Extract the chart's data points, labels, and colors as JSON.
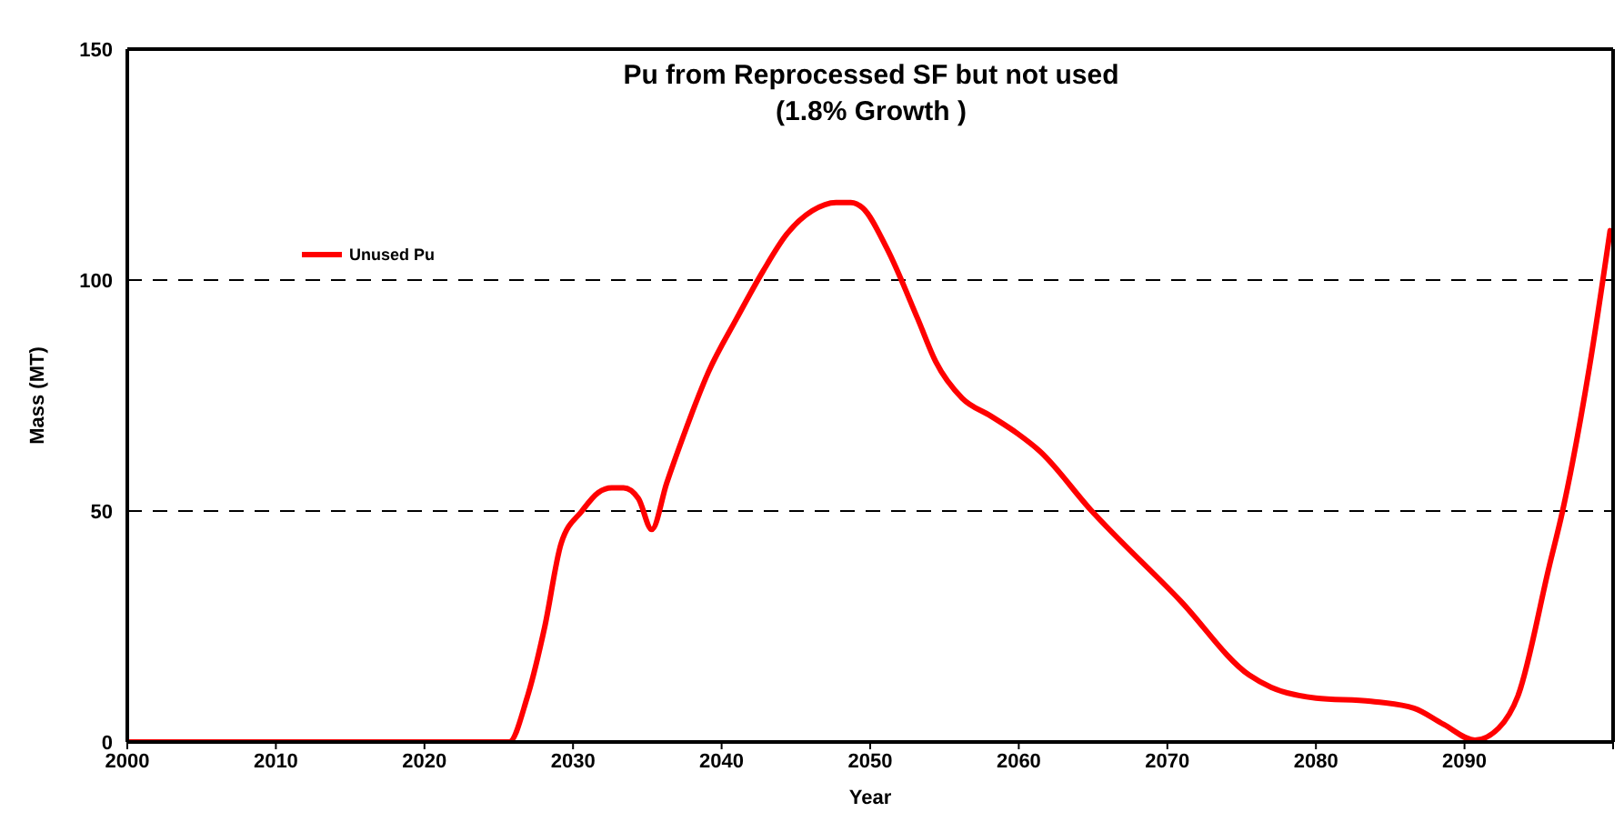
{
  "chart_data": {
    "type": "line",
    "title": "Pu from Reprocessed SF but not used",
    "subtitle": "(1.8% Growth )",
    "xlabel": "Year",
    "ylabel": "Mass (MT)",
    "x": [
      2000,
      2005,
      2010,
      2015,
      2020,
      2025,
      2025.7,
      2026.9,
      2028.1,
      2029.2,
      2030.6,
      2031.7,
      2032.6,
      2033.4,
      2034.4,
      2035.3,
      2036.3,
      2037.4,
      2039.1,
      2041,
      2042.8,
      2044.4,
      2046.1,
      2047.7,
      2048.7,
      2049.5,
      2051.1,
      2053.2,
      2054.4,
      2056.2,
      2058.1,
      2059.9,
      2061.4,
      2064.8,
      2070.9,
      2075.5,
      2077,
      2080,
      2083.7,
      2086.6,
      2088.6,
      2090.7,
      2092.3,
      2093.6,
      2095.7,
      2096.6,
      2098.4,
      2099.8
    ],
    "series": [
      {
        "name": "Unused Pu",
        "color": "#ff0000",
        "values": [
          0,
          0,
          0,
          0,
          0,
          0,
          0,
          9.5,
          25,
          43,
          50,
          54,
          55,
          55,
          52.7,
          46,
          56,
          66,
          80,
          91.6,
          102,
          110,
          115,
          116.8,
          116.8,
          115.6,
          107,
          91.6,
          82.4,
          74.4,
          70.6,
          66.8,
          63,
          50.4,
          30.5,
          14.5,
          11.8,
          9.5,
          8.8,
          7.3,
          3.8,
          0.4,
          3,
          10,
          38,
          50,
          81,
          110.7
        ]
      }
    ],
    "xlim": [
      2000,
      2100
    ],
    "xticks": [
      2000,
      2010,
      2020,
      2030,
      2040,
      2050,
      2060,
      2070,
      2080,
      2090,
      {
        "value": 2100,
        "label": null
      }
    ],
    "ylim": [
      0,
      150
    ],
    "yticks": [
      0,
      50,
      100,
      150
    ],
    "grid": "y",
    "legend": "top left",
    "marker": "none",
    "line_style": "solid"
  }
}
